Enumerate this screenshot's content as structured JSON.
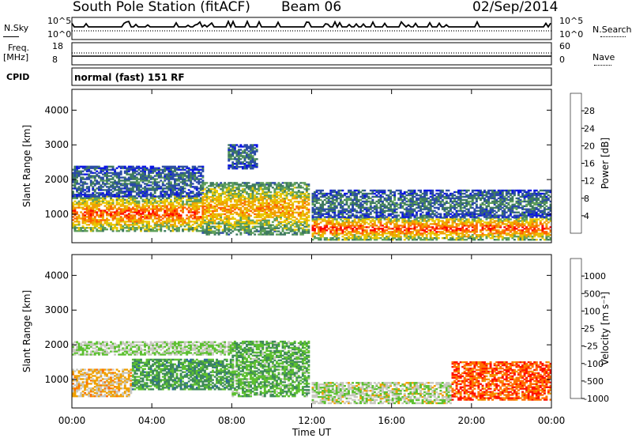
{
  "header": {
    "station": "South Pole Station (fitACF)",
    "beam": "Beam 06",
    "date": "02/Sep/2014"
  },
  "top_panels": {
    "nsky_label": "N.Sky",
    "nsky_ticks": [
      "10^5",
      "10^0"
    ],
    "nsearch_label": "N.Search",
    "nsearch_ticks": [
      "10^5",
      "10^0"
    ],
    "freq_label": "Freq.",
    "freq_unit": "[MHz]",
    "freq_ticks": [
      "18",
      "8"
    ],
    "nave_label": "Nave",
    "nave_ticks": [
      "60",
      "0"
    ],
    "cpid_label": "CPID",
    "cpid_text": "normal (fast) 151 RF"
  },
  "chart_data": [
    {
      "type": "heatmap",
      "name": "power",
      "ylabel": "Slant Range [km]",
      "xlabel": "Time UT",
      "xlim": [
        0,
        24
      ],
      "ylim": [
        180,
        4600
      ],
      "x_ticks": [
        "00:00",
        "04:00",
        "08:00",
        "12:00",
        "16:00",
        "20:00",
        "00:00"
      ],
      "y_ticks": [
        1000,
        2000,
        3000,
        4000
      ],
      "colorbar": {
        "label": "Power [dB]",
        "ticks": [
          "4",
          "8",
          "12",
          "16",
          "20",
          "24",
          "28"
        ],
        "range": [
          0,
          30
        ],
        "colors": [
          "#0a14e6",
          "#2a4aa8",
          "#3e7a60",
          "#5fa05a",
          "#e8c800",
          "#f0a000",
          "#ff6000",
          "#ff0000"
        ]
      },
      "regions": [
        {
          "t0": 0,
          "t1": 6.5,
          "r0": 500,
          "r1": 1500,
          "value": 26
        },
        {
          "t0": 0,
          "t1": 6.5,
          "r0": 1500,
          "r1": 2400,
          "value": 9
        },
        {
          "t0": 6.5,
          "t1": 11.8,
          "r0": 400,
          "r1": 1900,
          "value": 22
        },
        {
          "t0": 7.8,
          "t1": 9.2,
          "r0": 2300,
          "r1": 3000,
          "value": 10
        },
        {
          "t0": 12,
          "t1": 24,
          "r0": 250,
          "r1": 900,
          "value": 27
        },
        {
          "t0": 12,
          "t1": 24,
          "r0": 900,
          "r1": 1700,
          "value": 10
        }
      ]
    },
    {
      "type": "heatmap",
      "name": "velocity",
      "ylabel": "Slant Range [km]",
      "xlabel": "Time UT",
      "xlim": [
        0,
        24
      ],
      "ylim": [
        180,
        4600
      ],
      "x_ticks": [
        "00:00",
        "04:00",
        "08:00",
        "12:00",
        "16:00",
        "20:00",
        "00:00"
      ],
      "y_ticks": [
        1000,
        2000,
        3000,
        4000
      ],
      "colorbar": {
        "label": "Velocity [m s⁻¹]",
        "ticks": [
          "1000",
          "500",
          "100",
          "25",
          "-25",
          "-100",
          "-500",
          "-1000"
        ],
        "range": [
          -1000,
          1000
        ],
        "colors": [
          "#1a3ab0",
          "#2a6a9a",
          "#3e8a58",
          "#5cc030",
          "#c8c8c0",
          "#f0a000",
          "#ff7000",
          "#ff1000"
        ]
      },
      "regions": [
        {
          "t0": 0,
          "t1": 3,
          "r0": 500,
          "r1": 1300,
          "value": 300
        },
        {
          "t0": 3,
          "t1": 8,
          "r0": 700,
          "r1": 1600,
          "value": -300
        },
        {
          "t0": 0,
          "t1": 8,
          "r0": 1700,
          "r1": 2100,
          "value": 0
        },
        {
          "t0": 8,
          "t1": 11.8,
          "r0": 500,
          "r1": 2100,
          "value": -200
        },
        {
          "t0": 12,
          "t1": 19,
          "r0": 300,
          "r1": 900,
          "value": 60
        },
        {
          "t0": 19,
          "t1": 24,
          "r0": 400,
          "r1": 1500,
          "value": 700
        }
      ]
    }
  ]
}
